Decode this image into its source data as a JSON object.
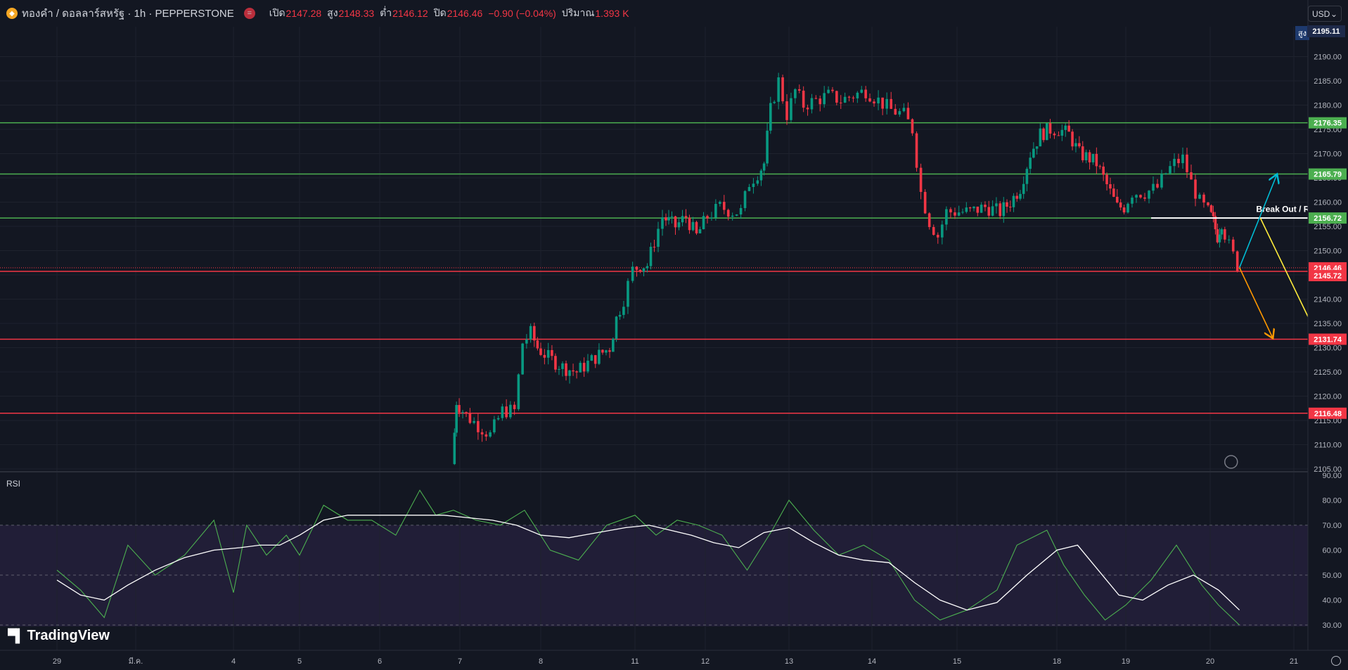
{
  "header": {
    "title": "ทองคำ / ดอลลาร์สหรัฐ · 1h · PEPPERSTONE",
    "open_label": "เปิด",
    "open": "2147.28",
    "high_label": "สูง",
    "high": "2148.33",
    "low_label": "ต่ำ",
    "low": "2146.12",
    "close_label": "ปิด",
    "close": "2146.46",
    "change": "−0.90 (−0.04%)",
    "volume_label": "ปริมาณ",
    "volume": "1.393 K"
  },
  "currency": "USD",
  "high_marker": {
    "label": "สูง",
    "value": "2195.11"
  },
  "rsi_label": "RSI",
  "brand": "TradingView",
  "colors": {
    "up": "#089981",
    "down": "#f23645",
    "support": "#f23645",
    "resistance": "#4caf50",
    "rsi": "#4caf50"
  },
  "chart_data": [
    {
      "type": "candlestick",
      "instrument": "ทองคำ / ดอลลาร์สหรัฐ",
      "y_ticks": [
        "2190.00",
        "2185.00",
        "2180.00",
        "2175.00",
        "2170.00",
        "2165.00",
        "2160.00",
        "2155.00",
        "2150.00",
        "2145.00",
        "2140.00",
        "2135.00",
        "2130.00",
        "2125.00",
        "2120.00",
        "2115.00",
        "2110.00",
        "2105.00"
      ],
      "ylim": [
        2105,
        2195
      ],
      "x_ticks": [
        "29",
        "มี.ค.",
        "4",
        "5",
        "6",
        "7",
        "8",
        "11",
        "12",
        "13",
        "14",
        "15",
        "18",
        "19",
        "20",
        "21"
      ],
      "path": [
        [
          4.92,
          2106
        ],
        [
          4.97,
          2119
        ],
        [
          5.1,
          2116
        ],
        [
          5.25,
          2114
        ],
        [
          5.4,
          2112
        ],
        [
          5.55,
          2117
        ],
        [
          5.7,
          2117
        ],
        [
          5.8,
          2131
        ],
        [
          5.9,
          2133
        ],
        [
          5.98,
          2130
        ],
        [
          6.1,
          2128
        ],
        [
          6.25,
          2126
        ],
        [
          6.4,
          2125
        ],
        [
          6.6,
          2128
        ],
        [
          6.75,
          2130
        ],
        [
          6.82,
          2136
        ],
        [
          6.9,
          2140
        ],
        [
          7.0,
          2146
        ],
        [
          7.1,
          2147
        ],
        [
          7.2,
          2147
        ],
        [
          7.3,
          2152
        ],
        [
          7.42,
          2157
        ],
        [
          7.5,
          2156
        ],
        [
          7.6,
          2155
        ],
        [
          7.75,
          2157
        ],
        [
          7.9,
          2153
        ],
        [
          8.05,
          2157
        ],
        [
          8.2,
          2159
        ],
        [
          8.35,
          2158
        ],
        [
          8.45,
          2158
        ],
        [
          8.55,
          2164
        ],
        [
          8.65,
          2166
        ],
        [
          8.72,
          2168
        ],
        [
          8.8,
          2179
        ],
        [
          8.9,
          2185
        ],
        [
          9.0,
          2178
        ],
        [
          9.1,
          2183
        ],
        [
          9.2,
          2180
        ],
        [
          9.35,
          2181
        ],
        [
          9.5,
          2182
        ],
        [
          9.65,
          2181
        ],
        [
          9.8,
          2182
        ],
        [
          9.95,
          2183
        ],
        [
          10.1,
          2181
        ],
        [
          10.25,
          2179
        ],
        [
          10.4,
          2178
        ],
        [
          10.5,
          2175
        ],
        [
          10.6,
          2162
        ],
        [
          10.7,
          2156
        ],
        [
          10.8,
          2153
        ],
        [
          10.9,
          2158
        ],
        [
          11.0,
          2158
        ],
        [
          11.15,
          2158
        ],
        [
          11.3,
          2159
        ],
        [
          11.45,
          2158
        ],
        [
          11.55,
          2160
        ],
        [
          11.65,
          2163
        ],
        [
          11.75,
          2170
        ],
        [
          11.85,
          2174
        ],
        [
          11.95,
          2175
        ],
        [
          12.05,
          2175
        ],
        [
          12.2,
          2174
        ],
        [
          12.35,
          2170
        ],
        [
          12.5,
          2169
        ],
        [
          12.6,
          2168
        ],
        [
          12.7,
          2165
        ],
        [
          12.8,
          2162
        ],
        [
          12.9,
          2159
        ],
        [
          13.0,
          2159
        ],
        [
          13.1,
          2162
        ],
        [
          13.25,
          2162
        ],
        [
          13.4,
          2163
        ],
        [
          13.5,
          2166
        ],
        [
          13.6,
          2168
        ],
        [
          13.7,
          2169
        ],
        [
          13.8,
          2164
        ],
        [
          13.9,
          2160
        ],
        [
          14.0,
          2158
        ],
        [
          14.05,
          2156
        ],
        [
          14.1,
          2153
        ],
        [
          14.15,
          2156
        ],
        [
          14.25,
          2151
        ],
        [
          14.35,
          2147
        ]
      ],
      "horizontal_levels": [
        {
          "value": 2176.35,
          "label": "2176.35",
          "color": "green"
        },
        {
          "value": 2165.79,
          "label": "2165.79",
          "color": "green"
        },
        {
          "value": 2156.72,
          "label": "2156.72",
          "color": "green"
        },
        {
          "value": 2146.46,
          "label": "2146.46",
          "color": "red",
          "kind": "last-price"
        },
        {
          "value": 2145.72,
          "label": "2145.72",
          "color": "red"
        },
        {
          "value": 2131.74,
          "label": "2131.74",
          "color": "red"
        },
        {
          "value": 2116.48,
          "label": "2116.48",
          "color": "red"
        }
      ],
      "annotations": [
        {
          "type": "text",
          "text": "Break Out / Re-Test"
        },
        {
          "type": "hline",
          "color": "white",
          "x": [
            13.3,
            16.6
          ],
          "y": 2156.72
        },
        {
          "type": "arrow",
          "color": "#00bcd4",
          "from": [
            14.35,
            2146.5
          ],
          "to": [
            14.8,
            2165.8
          ]
        },
        {
          "type": "arrow",
          "color": "#ffeb3b",
          "from": [
            14.6,
            2156.7
          ],
          "to": [
            15.3,
            2131.7
          ]
        },
        {
          "type": "arrow",
          "color": "#ff9800",
          "from": [
            14.35,
            2146.5
          ],
          "to": [
            14.75,
            2131.9
          ]
        }
      ],
      "events": [
        {
          "icon": "flash-icon",
          "x": 14.25
        },
        {
          "icon": "us-flag-icon",
          "x": 15.8
        },
        {
          "icon": "us-flag-icon",
          "x": 17.35
        }
      ]
    },
    {
      "type": "line",
      "title": "RSI",
      "y_ticks": [
        "90.00",
        "80.00",
        "70.00",
        "60.00",
        "50.00",
        "40.00",
        "30.00"
      ],
      "ylim": [
        28,
        90
      ],
      "bands": [
        30,
        50,
        70
      ],
      "series": [
        {
          "role": "rsi",
          "color": "#4caf50",
          "x": [
            0,
            0.3,
            0.6,
            0.9,
            1.2,
            1.5,
            1.8,
            2.0,
            2.2,
            2.5,
            2.8,
            3.0,
            3.3,
            3.6,
            3.9,
            4.2,
            4.5,
            4.7,
            4.92,
            5.2,
            5.5,
            5.8,
            6.1,
            6.4,
            6.7,
            7.0,
            7.3,
            7.6,
            7.9,
            8.2,
            8.5,
            8.8,
            9.0,
            9.3,
            9.6,
            9.9,
            10.2,
            10.5,
            10.8,
            11.1,
            11.4,
            11.6,
            11.9,
            12.1,
            12.4,
            12.7,
            13.0,
            13.3,
            13.6,
            13.9,
            14.1,
            14.35
          ],
          "values": [
            52,
            44,
            33,
            62,
            50,
            58,
            72,
            43,
            70,
            58,
            66,
            58,
            78,
            72,
            72,
            66,
            84,
            74,
            76,
            72,
            70,
            76,
            60,
            56,
            70,
            74,
            66,
            72,
            70,
            66,
            52,
            68,
            80,
            68,
            58,
            62,
            56,
            40,
            32,
            36,
            44,
            62,
            68,
            54,
            42,
            32,
            38,
            48,
            62,
            46,
            38,
            30
          ]
        },
        {
          "role": "ma",
          "color": "#ffffff",
          "x": [
            0,
            0.3,
            0.6,
            0.9,
            1.2,
            1.5,
            1.8,
            2.1,
            2.4,
            2.7,
            3.0,
            3.3,
            3.6,
            3.9,
            4.2,
            4.5,
            4.8,
            5.1,
            5.4,
            5.7,
            6.0,
            6.3,
            6.6,
            6.9,
            7.2,
            7.5,
            7.8,
            8.1,
            8.4,
            8.7,
            9.0,
            9.3,
            9.6,
            9.9,
            10.2,
            10.5,
            10.8,
            11.1,
            11.4,
            11.7,
            12.0,
            12.3,
            12.6,
            12.9,
            13.2,
            13.5,
            13.8,
            14.1,
            14.35
          ],
          "values": [
            48,
            42,
            40,
            46,
            52,
            57,
            60,
            61,
            62,
            62,
            66,
            72,
            74,
            74,
            74,
            74,
            74,
            73,
            72,
            70,
            66,
            65,
            67,
            69,
            70,
            68,
            66,
            63,
            61,
            67,
            69,
            63,
            58,
            56,
            55,
            47,
            40,
            36,
            39,
            50,
            60,
            62,
            52,
            42,
            40,
            46,
            50,
            44,
            36
          ]
        }
      ]
    }
  ]
}
